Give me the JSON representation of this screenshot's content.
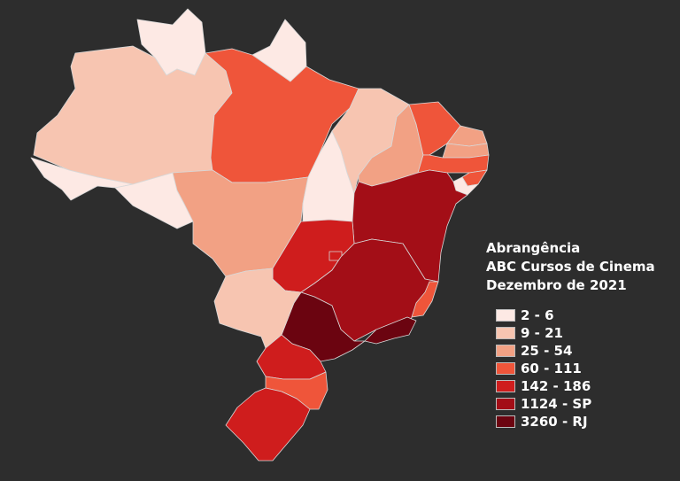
{
  "title_lines": [
    "Abrangência",
    "ABC Cursos de Cinema",
    "Dezembro de 2021"
  ],
  "legend": [
    {
      "label": "2 - 6",
      "color": "#fde9e4"
    },
    {
      "label": "9 - 21",
      "color": "#f7c5b1"
    },
    {
      "label": "25 - 54",
      "color": "#f2a184"
    },
    {
      "label": "60 - 111",
      "color": "#ef553a"
    },
    {
      "label": "142 - 186",
      "color": "#cf1d1d"
    },
    {
      "label": "1124 - SP",
      "color": "#a30e17"
    },
    {
      "label": "3260 - RJ",
      "color": "#6b0410"
    }
  ]
}
